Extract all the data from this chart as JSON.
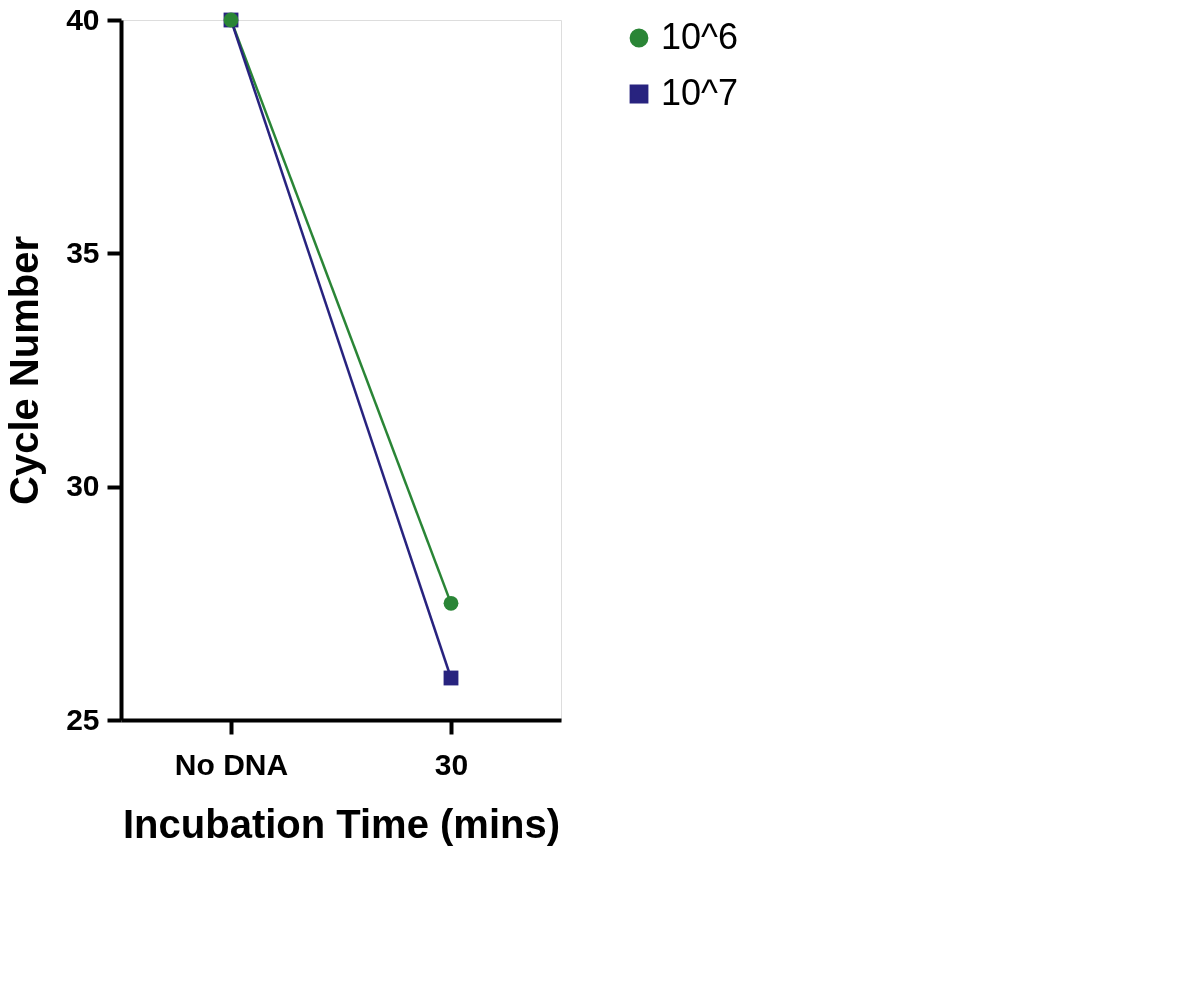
{
  "chart_data": {
    "type": "line",
    "xlabel": "Incubation Time (mins)",
    "ylabel": "Cycle Number",
    "categories": [
      "No DNA",
      "30"
    ],
    "series": [
      {
        "name": "10^6",
        "color": "#2a8536",
        "values": [
          40,
          27.5
        ],
        "marker": "circle"
      },
      {
        "name": "10^7",
        "color": "#28237f",
        "values": [
          40,
          25.9
        ],
        "marker": "square"
      }
    ],
    "ylim": [
      25,
      40
    ],
    "yticks": [
      25,
      30,
      35,
      40
    ],
    "grid": false,
    "legend": "top right",
    "line_style": "solid"
  }
}
